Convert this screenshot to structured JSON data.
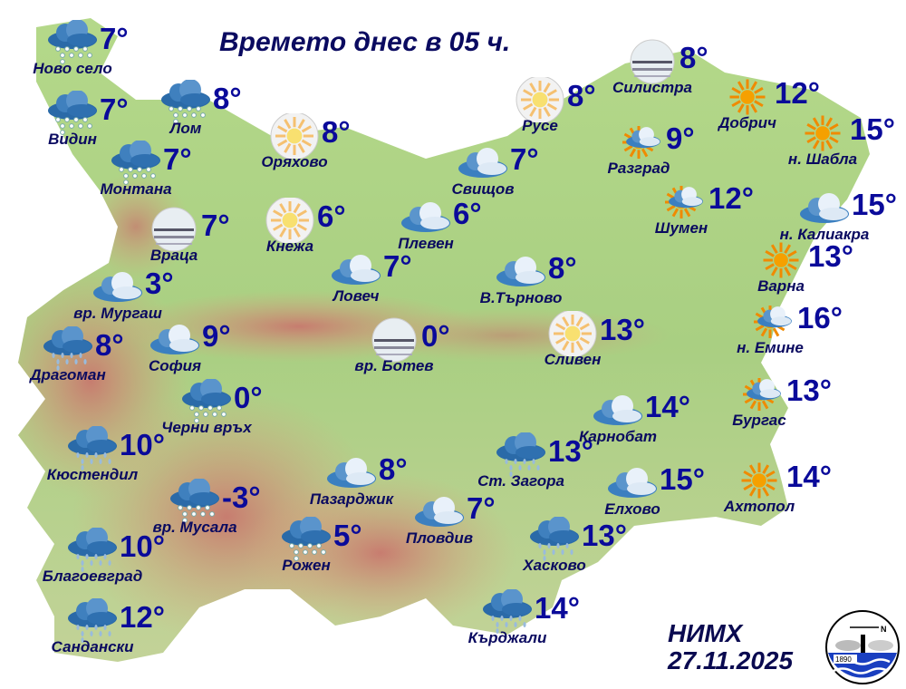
{
  "title": "Времето днес в 05 ч.",
  "organization": "НИМХ",
  "date": "27.11.2025",
  "logo": {
    "text": "1890",
    "letter": "N"
  },
  "colors": {
    "text": "#0a0a60",
    "temperature": "#0a0a9a",
    "lowland": "#a8d080",
    "mountain": "#d88a7a"
  },
  "stations": [
    {
      "name": "Ново село",
      "temp": "7°",
      "icon": "rain-snow"
    },
    {
      "name": "Видин",
      "temp": "7°",
      "icon": "rain-snow"
    },
    {
      "name": "Лом",
      "temp": "8°",
      "icon": "rain-snow"
    },
    {
      "name": "Монтана",
      "temp": "7°",
      "icon": "rain-snow"
    },
    {
      "name": "Оряхово",
      "temp": "8°",
      "icon": "sun-haze"
    },
    {
      "name": "Враца",
      "temp": "7°",
      "icon": "fog"
    },
    {
      "name": "Кнежа",
      "temp": "6°",
      "icon": "sun-haze"
    },
    {
      "name": "Плевен",
      "temp": "6°",
      "icon": "cloudy"
    },
    {
      "name": "Ловеч",
      "temp": "7°",
      "icon": "cloudy"
    },
    {
      "name": "вр. Мургаш",
      "temp": "3°",
      "icon": "cloudy"
    },
    {
      "name": "Драгоман",
      "temp": "8°",
      "icon": "rain"
    },
    {
      "name": "София",
      "temp": "9°",
      "icon": "cloudy"
    },
    {
      "name": "вр. Ботев",
      "temp": "0°",
      "icon": "fog"
    },
    {
      "name": "Черни връх",
      "temp": "0°",
      "icon": "rain-snow"
    },
    {
      "name": "Кюстендил",
      "temp": "10°",
      "icon": "rain"
    },
    {
      "name": "вр. Мусала",
      "temp": "-3°",
      "icon": "rain-snow"
    },
    {
      "name": "Благоевград",
      "temp": "10°",
      "icon": "rain"
    },
    {
      "name": "Сандански",
      "temp": "12°",
      "icon": "rain"
    },
    {
      "name": "Рожен",
      "temp": "5°",
      "icon": "rain-snow"
    },
    {
      "name": "Пазарджик",
      "temp": "8°",
      "icon": "cloudy"
    },
    {
      "name": "Пловдив",
      "temp": "7°",
      "icon": "cloudy"
    },
    {
      "name": "Ст. Загора",
      "temp": "13°",
      "icon": "rain"
    },
    {
      "name": "Хасково",
      "temp": "13°",
      "icon": "rain"
    },
    {
      "name": "Кърджали",
      "temp": "14°",
      "icon": "rain"
    },
    {
      "name": "Карнобат",
      "temp": "14°",
      "icon": "cloudy"
    },
    {
      "name": "Елхово",
      "temp": "15°",
      "icon": "cloudy"
    },
    {
      "name": "Ахтопол",
      "temp": "14°",
      "icon": "sunny"
    },
    {
      "name": "Бургас",
      "temp": "13°",
      "icon": "partly-cloudy"
    },
    {
      "name": "н. Емине",
      "temp": "16°",
      "icon": "partly-cloudy"
    },
    {
      "name": "Сливен",
      "temp": "13°",
      "icon": "sun-haze"
    },
    {
      "name": "В.Търново",
      "temp": "8°",
      "icon": "cloudy"
    },
    {
      "name": "Свищов",
      "temp": "7°",
      "icon": "cloudy"
    },
    {
      "name": "Русе",
      "temp": "8°",
      "icon": "sun-haze"
    },
    {
      "name": "Силистра",
      "temp": "8°",
      "icon": "fog"
    },
    {
      "name": "Добрич",
      "temp": "12°",
      "icon": "sunny"
    },
    {
      "name": "н. Шабла",
      "temp": "15°",
      "icon": "sunny"
    },
    {
      "name": "Разград",
      "temp": "9°",
      "icon": "partly-cloudy"
    },
    {
      "name": "Шумен",
      "temp": "12°",
      "icon": "partly-cloudy"
    },
    {
      "name": "н. Калиакра",
      "temp": "15°",
      "icon": "cloudy"
    },
    {
      "name": "Варна",
      "temp": "13°",
      "icon": "sunny"
    }
  ]
}
